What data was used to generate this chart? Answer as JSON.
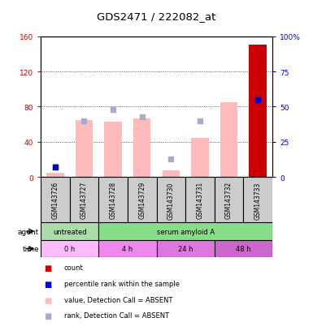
{
  "title": "GDS2471 / 222082_at",
  "samples": [
    "GSM143726",
    "GSM143727",
    "GSM143728",
    "GSM143729",
    "GSM143730",
    "GSM143731",
    "GSM143732",
    "GSM143733"
  ],
  "bar_values": [
    5,
    65,
    63,
    67,
    8,
    45,
    85,
    150
  ],
  "bar_colors_value": [
    "#ffbbbb",
    "#ffbbbb",
    "#ffbbbb",
    "#ffbbbb",
    "#ffbbbb",
    "#ffbbbb",
    "#ffbbbb",
    "#cc0000"
  ],
  "rank_dots_right_pct": [
    8,
    40,
    48,
    43,
    13,
    40,
    null,
    null
  ],
  "perc_dots_right_pct": [
    7,
    null,
    null,
    null,
    null,
    null,
    null,
    55
  ],
  "ylim_left": [
    0,
    160
  ],
  "ylim_right": [
    0,
    100
  ],
  "yticks_left": [
    0,
    40,
    80,
    120,
    160
  ],
  "yticks_right": [
    0,
    25,
    50,
    75,
    100
  ],
  "ytick_labels_left": [
    "0",
    "40",
    "80",
    "120",
    "160"
  ],
  "ytick_labels_right": [
    "0",
    "25",
    "50",
    "75",
    "100%"
  ],
  "left_axis_color": "#cc0000",
  "right_axis_color": "#0000cc",
  "agent_row": [
    {
      "label": "untreated",
      "start": 0,
      "end": 2,
      "color": "#aaddaa"
    },
    {
      "label": "serum amyloid A",
      "start": 2,
      "end": 8,
      "color": "#88dd88"
    }
  ],
  "time_row": [
    {
      "label": "0 h",
      "start": 0,
      "end": 2,
      "color": "#ffbbff"
    },
    {
      "label": "4 h",
      "start": 2,
      "end": 4,
      "color": "#ee88ee"
    },
    {
      "label": "24 h",
      "start": 4,
      "end": 6,
      "color": "#dd77dd"
    },
    {
      "label": "48 h",
      "start": 6,
      "end": 8,
      "color": "#cc66cc"
    }
  ],
  "legend_items": [
    {
      "color": "#cc0000",
      "marker": "s",
      "label": "count"
    },
    {
      "color": "#0000cc",
      "marker": "s",
      "label": "percentile rank within the sample"
    },
    {
      "color": "#ffbbbb",
      "marker": "s",
      "label": "value, Detection Call = ABSENT"
    },
    {
      "color": "#aaaacc",
      "marker": "s",
      "label": "rank, Detection Call = ABSENT"
    }
  ],
  "sample_area_color": "#cccccc",
  "plot_bg_color": "#ffffff"
}
